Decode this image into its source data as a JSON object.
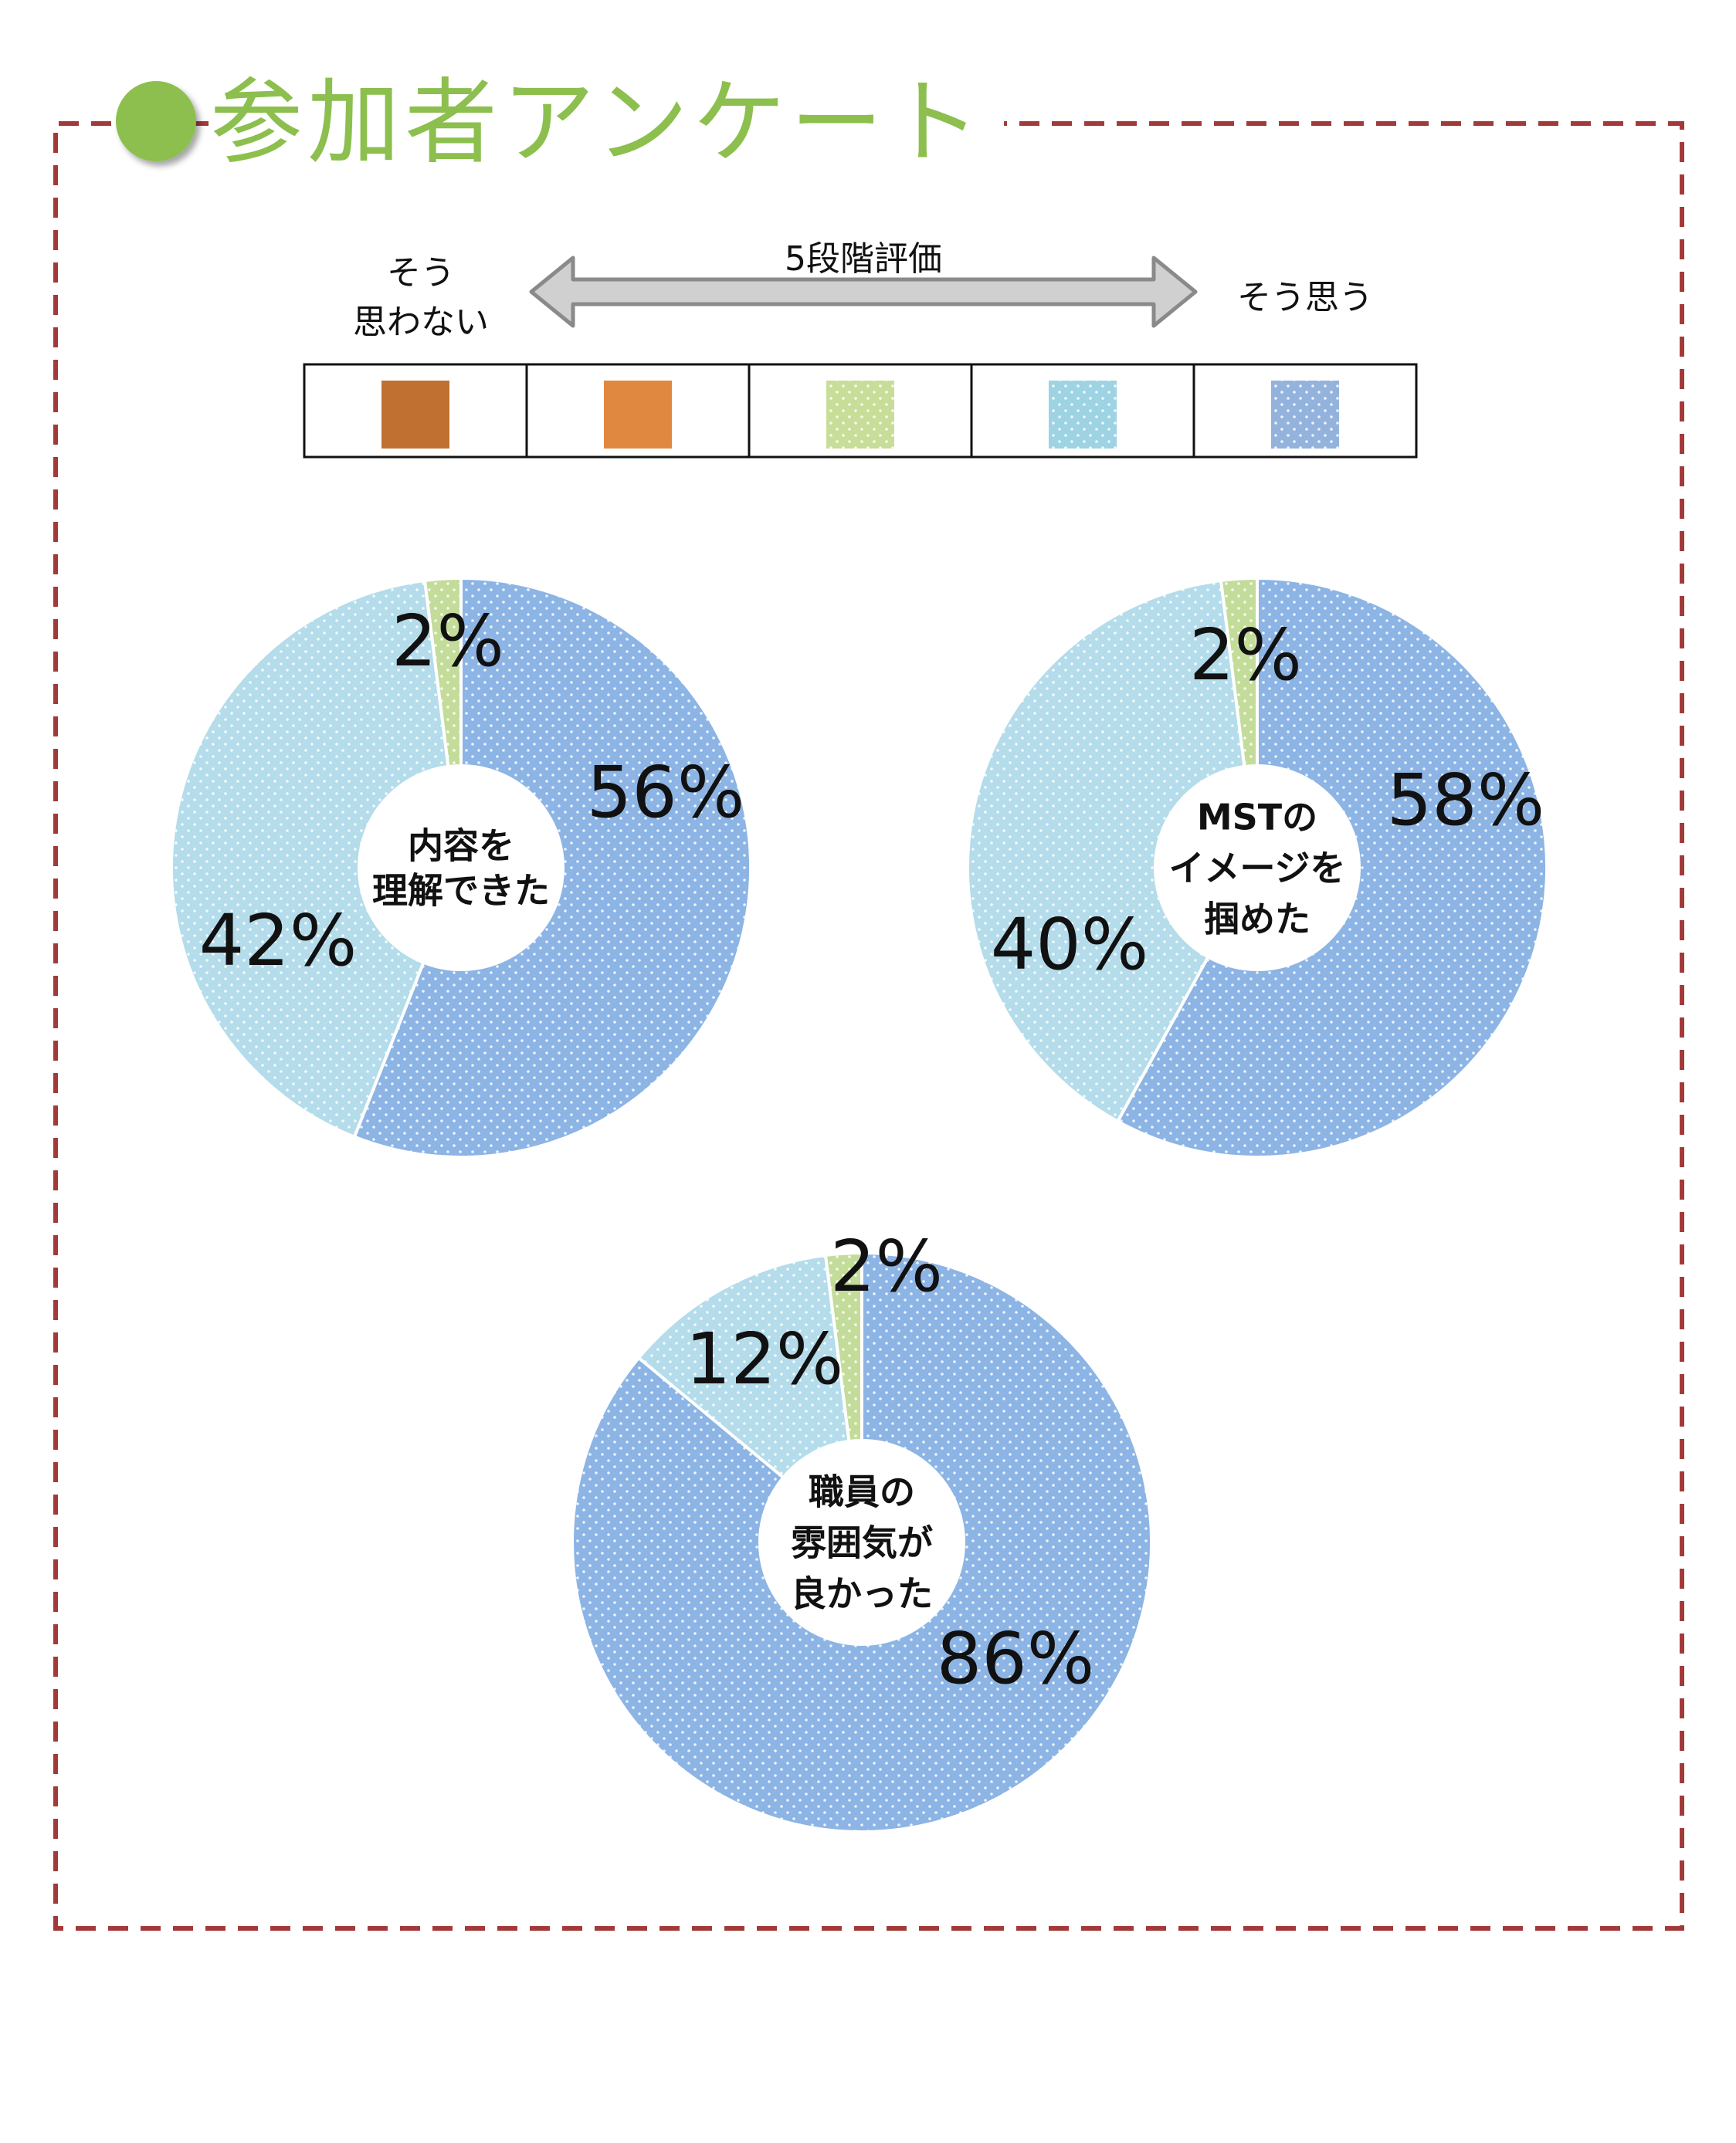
{
  "title": "参加者アンケート",
  "colors": {
    "title_green": "#8cbf4e",
    "frame": "#a33a3a",
    "c1": "#c07030",
    "c2": "#e08840",
    "c3": "#c8dd98",
    "c4": "#9dd3e3",
    "c5": "#93b3dc",
    "slice_light_blue": "#b4dcea",
    "slice_blue": "#8cb4e4",
    "slice_green": "#c3dc9a"
  },
  "scale": {
    "label_left_line1": "そう",
    "label_left_line2": "思わない",
    "label_center": "5段階評価",
    "label_right": "そう思う"
  },
  "chart_data": [
    {
      "type": "pie",
      "center_label": [
        "内容を",
        "理解できた"
      ],
      "slices": [
        {
          "value": 56,
          "label": "56%",
          "level": 5
        },
        {
          "value": 42,
          "label": "42%",
          "level": 4
        },
        {
          "value": 2,
          "label": "2%",
          "level": 3
        }
      ]
    },
    {
      "type": "pie",
      "center_label": [
        "MSTの",
        "イメージを",
        "掴めた"
      ],
      "slices": [
        {
          "value": 58,
          "label": "58%",
          "level": 5
        },
        {
          "value": 40,
          "label": "40%",
          "level": 4
        },
        {
          "value": 2,
          "label": "2%",
          "level": 3
        }
      ]
    },
    {
      "type": "pie",
      "center_label": [
        "職員の",
        "雰囲気が",
        "良かった"
      ],
      "slices": [
        {
          "value": 86,
          "label": "86%",
          "level": 5
        },
        {
          "value": 12,
          "label": "12%",
          "level": 4
        },
        {
          "value": 2,
          "label": "2%",
          "level": 3
        }
      ]
    }
  ]
}
